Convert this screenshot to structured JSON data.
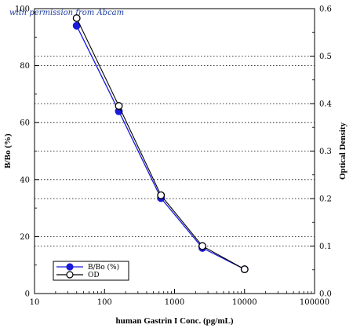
{
  "chart_data": {
    "type": "line",
    "annotation": "with permission from Abcam",
    "xlabel": "human Gastrin I Conc. (pg/mL)",
    "ylabel": "B/Bo (%)",
    "y2label": "Optical Density",
    "xscale": "log",
    "xlim": [
      10,
      100000
    ],
    "ylim": [
      0,
      100
    ],
    "y2lim": [
      0,
      0.6
    ],
    "x_ticks": [
      10,
      100,
      1000,
      10000,
      100000
    ],
    "x_tick_labels": [
      "10",
      "100",
      "1000",
      "10000",
      "100000"
    ],
    "y_ticks": [
      0,
      20,
      40,
      60,
      80,
      100
    ],
    "y_tick_labels": [
      "0",
      "20",
      "40",
      "60",
      "80",
      "100"
    ],
    "y2_ticks": [
      0,
      0.1,
      0.2,
      0.3,
      0.4,
      0.5,
      0.6
    ],
    "y2_tick_labels": [
      "0.0",
      "0.1",
      "0.2",
      "0.3",
      "0.4",
      "0.5",
      "0.6"
    ],
    "grid": "horizontal dotted",
    "legend_position": "bottom-left",
    "x": [
      40,
      160,
      640,
      2500,
      10000
    ],
    "series": [
      {
        "name": "B/Bo (%)",
        "axis": "left",
        "marker": "filled-circle",
        "color": "#1a1adb",
        "values": [
          94,
          64,
          33.5,
          16,
          8.5
        ]
      },
      {
        "name": "OD",
        "axis": "right",
        "marker": "open-circle",
        "color": "#000000",
        "values": [
          0.58,
          0.395,
          0.207,
          0.1,
          0.051
        ]
      }
    ]
  }
}
